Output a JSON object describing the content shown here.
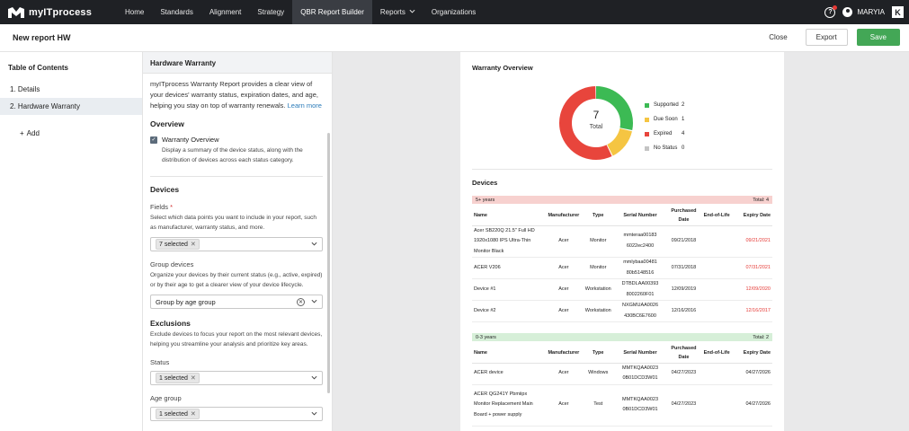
{
  "nav": {
    "brand": "myITprocess",
    "items": [
      {
        "label": "Home",
        "active": false,
        "dropdown": false
      },
      {
        "label": "Standards",
        "active": false,
        "dropdown": false
      },
      {
        "label": "Alignment",
        "active": false,
        "dropdown": false
      },
      {
        "label": "Strategy",
        "active": false,
        "dropdown": false
      },
      {
        "label": "QBR Report Builder",
        "active": true,
        "dropdown": false
      },
      {
        "label": "Reports",
        "active": false,
        "dropdown": true
      },
      {
        "label": "Organizations",
        "active": false,
        "dropdown": false
      }
    ],
    "help_glyph": "?",
    "user_name": "MARYIA",
    "brand_mark": "K"
  },
  "header": {
    "title": "New report HW",
    "close_label": "Close",
    "export_label": "Export",
    "save_label": "Save"
  },
  "toc": {
    "title": "Table of Contents",
    "items": [
      {
        "label": "1. Details",
        "active": false
      },
      {
        "label": "2. Hardware Warranty",
        "active": true
      }
    ],
    "add_label": "Add"
  },
  "settings": {
    "title": "Hardware Warranty",
    "intro": "myITprocess Warranty Report provides a clear view of your devices' warranty status, expiration dates, and age, helping you stay on top of warranty renewals.",
    "learn_more": "Learn more",
    "overview": {
      "title": "Overview",
      "checkbox_label": "Warranty Overview",
      "checked": true,
      "description": "Display a summary of the device status, along with the distribution of devices across each status category."
    },
    "devices": {
      "title": "Devices",
      "fields_label": "Fields",
      "fields_required": "*",
      "fields_help": "Select which data points you want to include in your report, such as manufacturer, warranty status, and more.",
      "fields_value": "7 selected",
      "group_label": "Group devices",
      "group_help": "Organize your devices by their current status (e.g., active, expired) or by their age to get a clearer view of your device lifecycle.",
      "group_value": "Group by age group"
    },
    "exclusions": {
      "title": "Exclusions",
      "help": "Exclude devices to focus your report on the most relevant devices, helping you streamline your analysis and prioritize key areas.",
      "status_label": "Status",
      "status_value": "1 selected",
      "age_label": "Age group",
      "age_value": "1 selected"
    }
  },
  "preview": {
    "overview_title": "Warranty Overview",
    "total": "7",
    "total_label": "Total",
    "chart_data": {
      "type": "pie",
      "categories": [
        "Supported",
        "Due Soon",
        "Expired",
        "No Status"
      ],
      "values": [
        2,
        1,
        4,
        0
      ],
      "colors": [
        "#3cba54",
        "#f5c542",
        "#e8453c",
        "#c4c4c4"
      ]
    },
    "legend": [
      {
        "name": "Supported",
        "count": "2",
        "color": "#3cba54"
      },
      {
        "name": "Due Soon",
        "count": "1",
        "color": "#f5c542"
      },
      {
        "name": "Expired",
        "count": "4",
        "color": "#e8453c"
      },
      {
        "name": "No Status",
        "count": "0",
        "color": "#c4c4c4"
      }
    ],
    "devices_title": "Devices",
    "columns": [
      "Name",
      "Manufacturer",
      "Type",
      "Serial Number",
      "Purchased Date",
      "End-of-Life",
      "Expiry Date"
    ],
    "groups": [
      {
        "label": "5+ years",
        "total": "Total: 4",
        "rows": [
          {
            "name": "Acer SB220Q 21.5\" Full HD 1920x1080 IPS Ultra-Thin Monitor Black",
            "manufacturer": "Acer",
            "type": "Monitor",
            "serial": "mmteraa00183 6022ec2400",
            "purchased": "09/21/2018",
            "eol": "",
            "expiry": "09/21/2021"
          },
          {
            "name": "ACER V206",
            "manufacturer": "Acer",
            "type": "Monitor",
            "serial": "mmlybaa00481 80b5148516",
            "purchased": "07/31/2018",
            "eol": "",
            "expiry": "07/31/2021"
          },
          {
            "name": "Device #1",
            "manufacturer": "Acer",
            "type": "Workstation",
            "serial": "DTBDLAA00393 8002260F01",
            "purchased": "12/09/2019",
            "eol": "",
            "expiry": "12/09/2020"
          },
          {
            "name": "Device #2",
            "manufacturer": "Acer",
            "type": "Workstation",
            "serial": "NXGMUAA0026 430BC6E7600",
            "purchased": "12/16/2016",
            "eol": "",
            "expiry": "12/16/2017"
          }
        ]
      },
      {
        "label": "0-3 years",
        "total": "Total: 2",
        "rows": [
          {
            "name": "ACER device",
            "manufacturer": "Acer",
            "type": "Windows",
            "serial": "MMTKQAA0023 0B01DCD3W01",
            "purchased": "04/27/2023",
            "eol": "",
            "expiry": "04/27/2026"
          },
          {
            "name": "ACER QG241Y Pbmiipx Monitor Replacement Main Board + power supply",
            "manufacturer": "Acer",
            "type": "Test",
            "serial": "MMTKQAA0023 0B01DCD3W01",
            "purchased": "04/27/2023",
            "eol": "",
            "expiry": "04/27/2026"
          }
        ]
      }
    ]
  }
}
